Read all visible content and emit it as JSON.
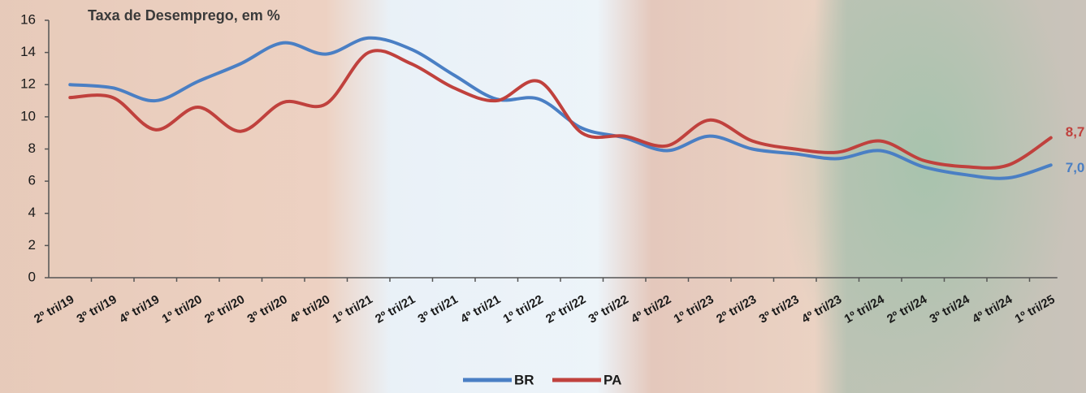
{
  "chart_data": {
    "type": "line",
    "title": "Taxa de Desemprego, em %",
    "categories": [
      "2º tri/19",
      "3º tri/19",
      "4º tri/19",
      "1º tri/20",
      "2º tri/20",
      "3º tri/20",
      "4º tri/20",
      "1º tri/21",
      "2º tri/21",
      "3º tri/21",
      "4º tri/21",
      "1º tri/22",
      "2º tri/22",
      "3º tri/22",
      "4º tri/22",
      "1º tri/23",
      "2º tri/23",
      "3º tri/23",
      "4º tri/23",
      "1º tri/24",
      "2º tri/24",
      "3º tri/24",
      "4º tri/24",
      "1º tri/25"
    ],
    "series": [
      {
        "name": "BR",
        "color": "#4a7fc4",
        "values": [
          12.0,
          11.8,
          11.0,
          12.2,
          13.3,
          14.6,
          13.9,
          14.9,
          14.2,
          12.6,
          11.1,
          11.1,
          9.3,
          8.7,
          7.9,
          8.8,
          8.0,
          7.7,
          7.4,
          7.9,
          6.9,
          6.4,
          6.2,
          7.0
        ],
        "value_labels": [
          null,
          null,
          null,
          null,
          null,
          null,
          null,
          null,
          null,
          null,
          null,
          null,
          null,
          null,
          null,
          null,
          null,
          null,
          null,
          null,
          null,
          null,
          null,
          "7,0"
        ]
      },
      {
        "name": "PA",
        "color": "#c0413d",
        "values": [
          11.2,
          11.2,
          9.2,
          10.6,
          9.1,
          10.9,
          10.8,
          14.0,
          13.3,
          11.8,
          11.0,
          12.2,
          9.0,
          8.8,
          8.2,
          9.8,
          8.5,
          8.0,
          7.8,
          8.5,
          7.3,
          6.9,
          7.0,
          8.7
        ],
        "value_labels": [
          null,
          null,
          null,
          null,
          null,
          null,
          null,
          null,
          null,
          null,
          null,
          null,
          null,
          null,
          null,
          null,
          null,
          null,
          null,
          null,
          null,
          null,
          null,
          "8,7"
        ]
      }
    ],
    "ylim": [
      0,
      16
    ],
    "yticks": [
      0,
      2,
      4,
      6,
      8,
      10,
      12,
      14,
      16
    ],
    "grid": false,
    "legend": "bottom"
  }
}
